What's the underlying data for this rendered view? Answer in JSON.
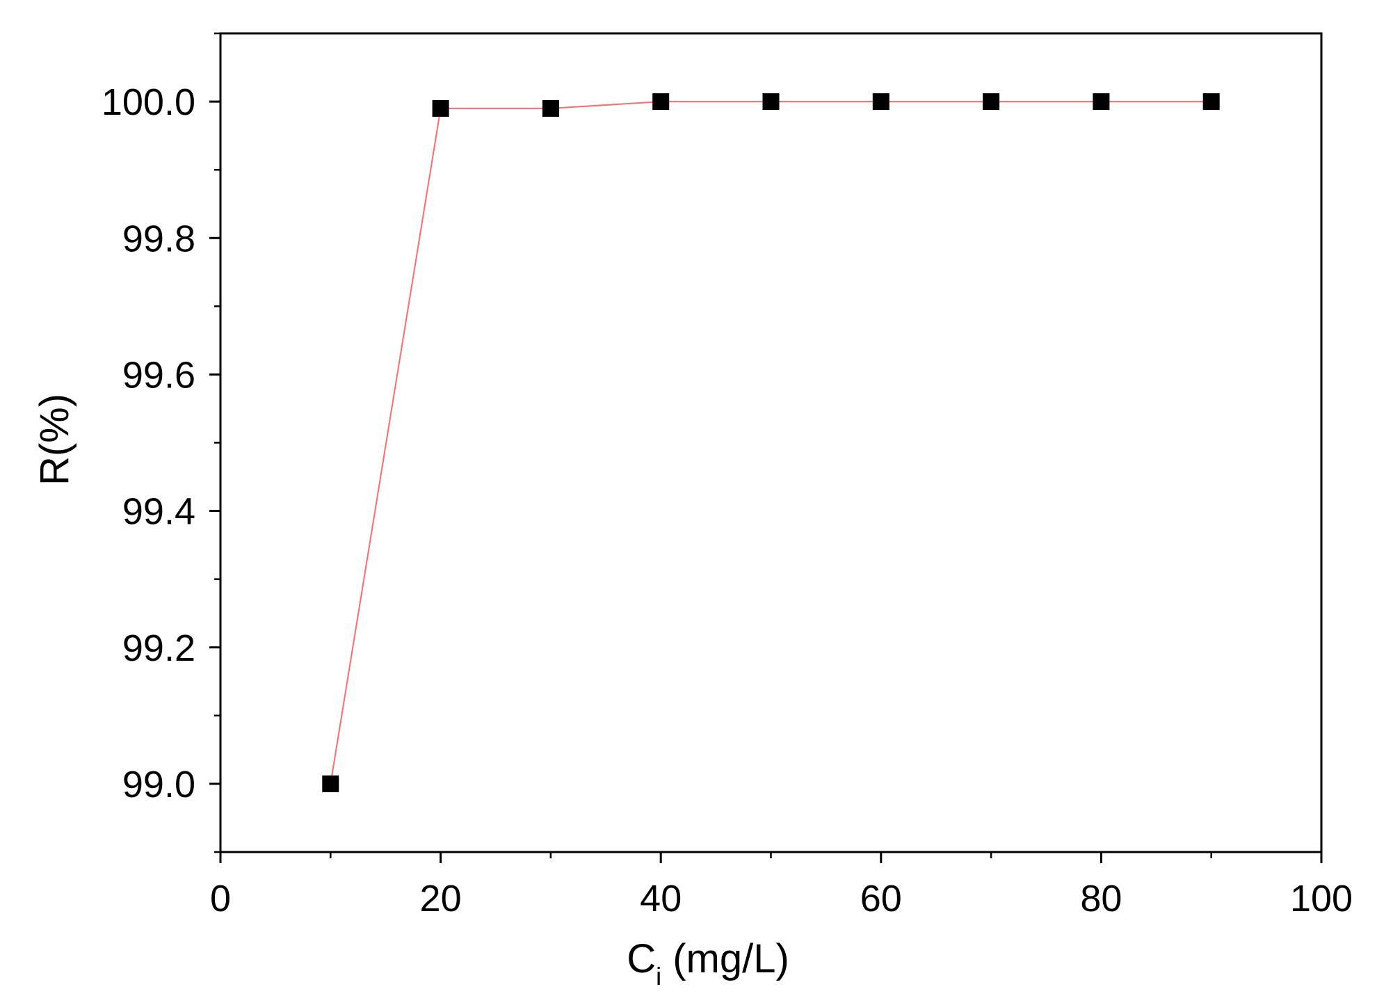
{
  "chart_data": {
    "type": "line",
    "title": "",
    "xlabel": "C",
    "xlabel_subscript": "i",
    "xlabel_unit": " (mg/L)",
    "ylabel": "R(%)",
    "xlim": [
      0,
      100
    ],
    "ylim": [
      98.9,
      100.1
    ],
    "x_ticks": [
      0,
      20,
      40,
      60,
      80,
      100
    ],
    "x_tick_labels": [
      "0",
      "20",
      "40",
      "60",
      "80",
      "100"
    ],
    "x_minor_ticks": [
      10,
      30,
      50,
      70,
      90
    ],
    "y_ticks": [
      99.0,
      99.2,
      99.4,
      99.6,
      99.8,
      100.0
    ],
    "y_tick_labels": [
      "99.0",
      "99.2",
      "99.4",
      "99.6",
      "99.8",
      "100.0"
    ],
    "y_minor_ticks": [
      98.9,
      99.1,
      99.3,
      99.5,
      99.7,
      99.9,
      100.1
    ],
    "grid": false,
    "legend": "none",
    "series": [
      {
        "x": [
          10,
          20,
          30,
          40,
          50,
          60,
          70,
          80,
          90
        ],
        "values": [
          99.0,
          99.99,
          99.99,
          100.0,
          100.0,
          100.0,
          100.0,
          100.0,
          100.0
        ],
        "marker": "square",
        "marker_color": "#000000",
        "line_color": "#ff6b6b"
      }
    ]
  }
}
